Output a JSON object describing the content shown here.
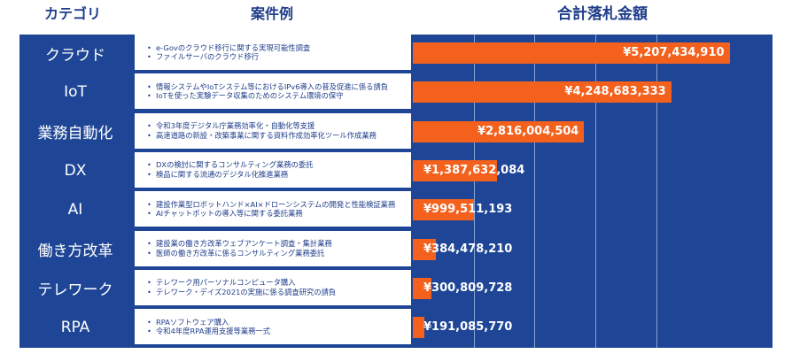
{
  "headers": {
    "category": "カテゴリ",
    "examples": "案件例",
    "amount": "合計落札金額"
  },
  "rows": [
    {
      "category": "クラウド",
      "examples": [
        "e-Govのクラウド移行に関する実現可能性調査",
        "ファイルサーバのクラウド移行"
      ]
    },
    {
      "category": "IoT",
      "examples": [
        "情報システムやIoTシステム等におけるIPv6導入の普及促進に係る請負",
        "IoTを使った実験データ収集のためのシステム環境の保守"
      ]
    },
    {
      "category": "業務自動化",
      "examples": [
        "令和3年度デジタル庁業務効率化・自動化等支援",
        "高速道路の新設・改築事業に関する資料作成効率化ツール作成業務"
      ]
    },
    {
      "category": "DX",
      "examples": [
        "DXの検討に関するコンサルティング業務の委託",
        "検品に関する流通のデジタル化推進業務"
      ]
    },
    {
      "category": "AI",
      "examples": [
        "建設作業型ロボットハンド×AI×ドローンシステムの開発と性能検証業務",
        "AIチャットボットの導入等に関する委託業務"
      ]
    },
    {
      "category": "働き方改革",
      "examples": [
        "建設業の働き方改革ウェブアンケート調査・集計業務",
        "医師の働き方改革に係るコンサルティング業務委託"
      ]
    },
    {
      "category": "テレワーク",
      "examples": [
        "テレワーク用パーソナルコンピュータ購入",
        "テレワーク・デイズ2021の実施に係る調査研究の請負"
      ]
    },
    {
      "category": "RPA",
      "examples": [
        "RPAソフトウェア購入",
        "令和4年度RPA運用支援等業務一式"
      ]
    }
  ],
  "chart_data": {
    "type": "bar",
    "orientation": "horizontal",
    "title": "合計落札金額",
    "categories": [
      "クラウド",
      "IoT",
      "業務自動化",
      "DX",
      "AI",
      "働き方改革",
      "テレワーク",
      "RPA"
    ],
    "values": [
      5207434910,
      4248683333,
      2816004504,
      1387632084,
      999511193,
      384478210,
      300809728,
      191085770
    ],
    "labels": [
      "¥5,207,434,910",
      "¥4,248,683,333",
      "¥2,816,004,504",
      "¥1,387,632,084",
      "¥999,511,193",
      "¥384,478,210",
      "¥300,809,728",
      "¥191,085,770"
    ],
    "xlim": [
      0,
      6000000000
    ],
    "gridlines": [
      1000000000,
      2000000000,
      3000000000,
      4000000000
    ],
    "bar_color": "#f4611c",
    "background_color": "#1f4696"
  }
}
